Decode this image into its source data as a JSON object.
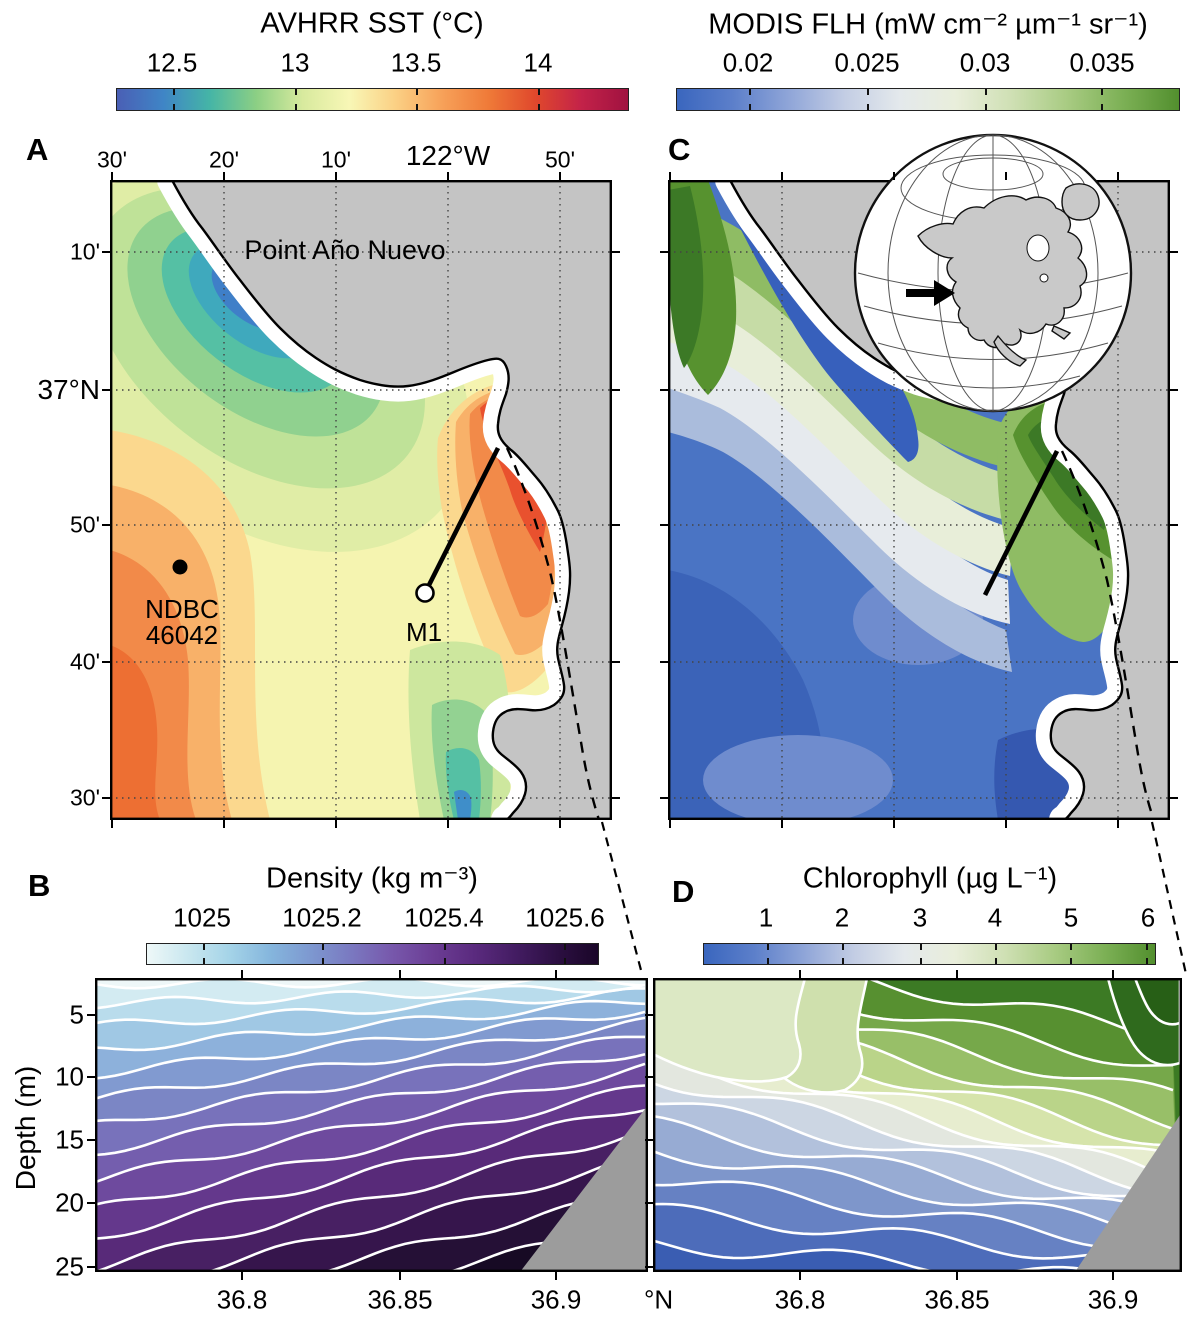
{
  "shared": {
    "lat_unit_label": "°N",
    "land_color": "#c4c4c4",
    "coast_mask_color": "#ffffff"
  },
  "chart_data": [
    {
      "panel_label": "A",
      "type": "heatmap",
      "title": "AVHRR SST (°C)",
      "colorbar": {
        "tick_labels": [
          "12.5",
          "13",
          "13.5",
          "14"
        ],
        "tick_values": [
          12.5,
          13,
          13.5,
          14
        ],
        "range": [
          12.25,
          14.35
        ],
        "orientation": "horizontal",
        "gradient": [
          "#4a5fb5",
          "#3f85c6",
          "#45b5a6",
          "#8ccf84",
          "#d8ea9e",
          "#f8f7b6",
          "#fbd084",
          "#f7a159",
          "#ef7a38",
          "#e0482c",
          "#c32249",
          "#a01240"
        ]
      },
      "x_axis": {
        "side": "top",
        "tick_labels": [
          "30'",
          "20'",
          "10'",
          "122°W",
          "50'"
        ],
        "meaning": "longitude west of 122°W"
      },
      "y_axis": {
        "tick_labels": [
          "10'",
          "37°N",
          "50'",
          "40'",
          "30'"
        ],
        "meaning": "latitude north"
      },
      "annotations": {
        "place": "Point Año Nuevo",
        "buoy_line1": "NDBC",
        "buoy_line2": "46042",
        "mooring": "M1"
      },
      "features": {
        "cold_upwelling_plume_c": 12.3,
        "warm_bay_maximum_c": 14.3,
        "offshore_southwest_c": 13.9,
        "solid_line": "transect from M1 mooring to NE Monterey Bay (shown in panels B and D)",
        "dashed_line": "link from bay region to lower section panels",
        "grid": "dotted graticule every 10 arc-minutes"
      }
    },
    {
      "panel_label": "B",
      "type": "contour-section",
      "title": "Density (kg m⁻³)",
      "colorbar": {
        "tick_labels": [
          "1025",
          "1025.2",
          "1025.4",
          "1025.6"
        ],
        "tick_values": [
          1025,
          1025.2,
          1025.4,
          1025.6
        ],
        "range": [
          1024.9,
          1025.66
        ],
        "orientation": "horizontal",
        "gradient": [
          "#eef8f8",
          "#c9e7ef",
          "#a5d4e8",
          "#85b6dd",
          "#7d98d0",
          "#7a78c0",
          "#7757ab",
          "#6b3d94",
          "#5a2a7e",
          "#431c62",
          "#2c0f42",
          "#1a0628"
        ]
      },
      "x_axis": {
        "tick_labels": [
          "36.8",
          "36.85",
          "36.9"
        ],
        "tick_values": [
          36.8,
          36.85,
          36.9
        ],
        "unit_label": "°N",
        "range": [
          36.755,
          36.93
        ]
      },
      "y_axis": {
        "label": "Depth (m)",
        "tick_labels": [
          "5",
          "10",
          "15",
          "20",
          "25"
        ],
        "tick_values": [
          5,
          10,
          15,
          20,
          25
        ],
        "range": [
          2,
          25
        ]
      },
      "contours": {
        "isopycnal_levels_kg_m3": [
          1024.95,
          1025.0,
          1025.05,
          1025.1,
          1025.15,
          1025.2,
          1025.25,
          1025.3,
          1025.35,
          1025.4,
          1025.45,
          1025.5,
          1025.55,
          1025.6,
          1025.65
        ],
        "surface_value": 1024.95,
        "bottom_max_value": 1025.66,
        "structure": "isopycnals shoal toward the north (right); densest water at depth mid-section",
        "gray_wedge": "seafloor at the northern end of the transect"
      }
    },
    {
      "panel_label": "C",
      "type": "heatmap",
      "title": "MODIS FLH (mW cm⁻² µm⁻¹ sr⁻¹)",
      "colorbar": {
        "tick_labels": [
          "0.02",
          "0.025",
          "0.03",
          "0.035"
        ],
        "tick_values": [
          0.02,
          0.025,
          0.03,
          0.035
        ],
        "range": [
          0.017,
          0.038
        ],
        "orientation": "horizontal",
        "gradient": [
          "#3a66be",
          "#5c7fca",
          "#8fa5d8",
          "#c3cde4",
          "#e4e9ec",
          "#e9eedb",
          "#cfe0b4",
          "#a8cb82",
          "#7cb055",
          "#528f2e"
        ]
      },
      "features": {
        "low_flh_coastal_plume": "< 0.02 along the Point Año Nuevo coast (freshly upwelled water)",
        "high_flh_bay": "> 0.035 in northeastern Monterey Bay",
        "offshore_values": "0.018 - 0.022 offshore to the southwest",
        "inset": "orthographic globe of North America with arrow marking the central California study site",
        "solid_line": "M1-to-bay transect",
        "dashed_line": "link to panel D section"
      }
    },
    {
      "panel_label": "D",
      "type": "contour-section",
      "title": "Chlorophyll (µg L⁻¹)",
      "colorbar": {
        "tick_labels": [
          "1",
          "2",
          "3",
          "4",
          "5",
          "6"
        ],
        "tick_values": [
          1,
          2,
          3,
          4,
          5,
          6
        ],
        "range": [
          0.2,
          6.1
        ],
        "orientation": "horizontal",
        "gradient": [
          "#3a66be",
          "#5c7fca",
          "#8fa5d8",
          "#c3cde4",
          "#e4e9ec",
          "#e9eedb",
          "#cfe0b4",
          "#a8cb82",
          "#7cb055",
          "#528f2e"
        ]
      },
      "x_axis": {
        "tick_labels": [
          "36.8",
          "36.85",
          "36.9"
        ],
        "tick_values": [
          36.8,
          36.85,
          36.9
        ],
        "unit_label": "°N",
        "range": [
          36.755,
          36.925
        ]
      },
      "y_axis": {
        "tick_labels": [
          "5",
          "10",
          "15",
          "20",
          "25"
        ],
        "tick_values": [
          5,
          10,
          15,
          20,
          25
        ],
        "range": [
          2,
          25
        ]
      },
      "contours": {
        "isoline_levels_ug_l": [
          6.0,
          5.6,
          5.2,
          4.8,
          4.4,
          4.0,
          3.6,
          3.2,
          2.8,
          2.4,
          2.0,
          1.6,
          1.2,
          0.8
        ],
        "surface_maximum": "> 6 µg/L near-surface at the northern (right) end",
        "deep_minimum": "< 1 µg/L below ~20 m",
        "structure": "chlorophyll maximum in upper 8 m deepening southward; pale low-gradient pocket upper left",
        "gray_wedge": "seafloor at the northern end of the transect"
      }
    }
  ]
}
